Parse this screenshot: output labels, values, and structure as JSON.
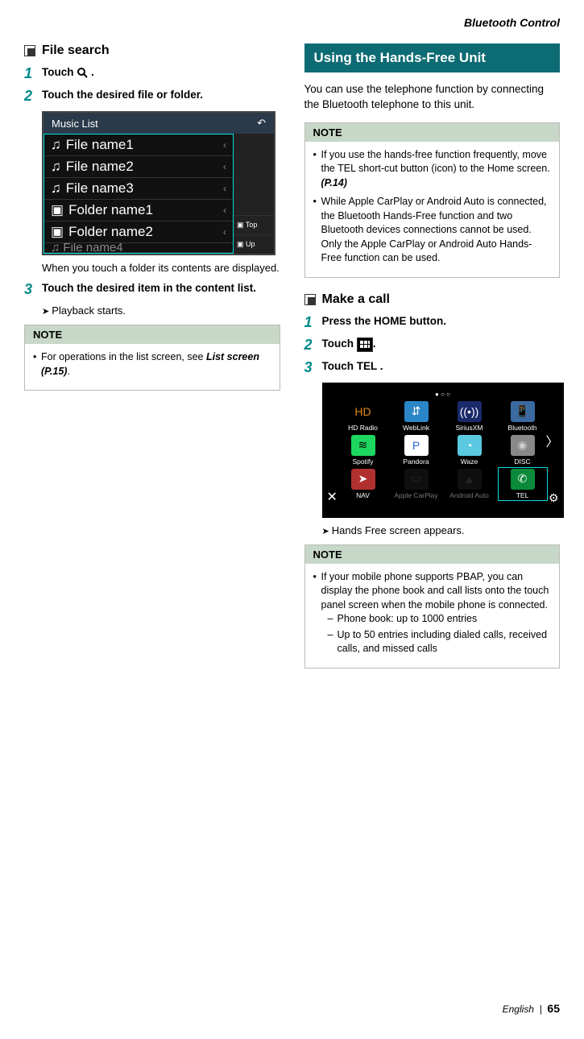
{
  "header": {
    "section": "Bluetooth Control"
  },
  "left": {
    "heading": "File search",
    "steps": {
      "s1_pre": "Touch ",
      "s1_post": " .",
      "s2": "Touch the desired file or folder.",
      "s2_caption": "When you touch a folder its contents are displayed.",
      "s3": "Touch the desired item in the content list.",
      "s3_result": "Playback starts."
    },
    "music": {
      "title": "Music List",
      "rows": [
        {
          "icon": "♫",
          "label": "File name1"
        },
        {
          "icon": "♫",
          "label": "File name2"
        },
        {
          "icon": "♫",
          "label": "File name3"
        },
        {
          "icon": "▣",
          "label": "Folder name1"
        },
        {
          "icon": "▣",
          "label": "Folder name2"
        }
      ],
      "row_cut": "File name4",
      "side": {
        "top": "▣ Top",
        "up": "▣ Up"
      }
    },
    "note": {
      "title": "NOTE",
      "item_pre": "For operations in the list screen, see ",
      "item_bold": "List screen (P.15)",
      "item_post": "."
    }
  },
  "right": {
    "section": "Using the Hands-Free Unit",
    "intro": "You can use the telephone function by connecting the Bluetooth telephone to this unit.",
    "note1": {
      "title": "NOTE",
      "i1_pre": "If you use the hands-free function frequently, move the TEL short-cut button (icon) to the Home screen. ",
      "i1_bold": "(P.14)",
      "i2": "While Apple CarPlay or Android Auto is connected, the Bluetooth Hands-Free function and two Bluetooth devices connections cannot be used. Only the Apple CarPlay or Android Auto Hands-Free function can be used."
    },
    "heading2": "Make a call",
    "steps": {
      "s1_pre": "Press the ",
      "s1_btn": "HOME",
      "s1_post": " button.",
      "s2_pre": "Touch ",
      "s2_post": ".",
      "s3_pre": "Touch ",
      "s3_btn": "TEL",
      "s3_post": " .",
      "s3_result": "Hands Free screen appears."
    },
    "home": {
      "apps": [
        {
          "label": "HD Radio",
          "bg": "#000",
          "glyph": "HD",
          "gcolor": "#e08a1a"
        },
        {
          "label": "WebLink",
          "bg": "#2b86c7",
          "glyph": "⇵",
          "gcolor": "#fff"
        },
        {
          "label": "SiriusXM",
          "bg": "#1a2a6a",
          "glyph": "((•))",
          "gcolor": "#fff"
        },
        {
          "label": "Bluetooth",
          "bg": "#3a6aa0",
          "glyph": "📱",
          "gcolor": "#fff"
        },
        {
          "label": "Spotify",
          "bg": "#1ed760",
          "glyph": "≋",
          "gcolor": "#000"
        },
        {
          "label": "Pandora",
          "bg": "#fff",
          "glyph": "P",
          "gcolor": "#2a6ad6"
        },
        {
          "label": "Waze",
          "bg": "#5ac8e0",
          "glyph": "◔",
          "gcolor": "#fff"
        },
        {
          "label": "DISC",
          "bg": "#888",
          "glyph": "◉",
          "gcolor": "#ccc"
        },
        {
          "label": "NAV",
          "bg": "#b03030",
          "glyph": "➤",
          "gcolor": "#fff"
        },
        {
          "label": "Apple CarPlay",
          "bg": "#222",
          "glyph": "▭",
          "gcolor": "#555",
          "dim": true
        },
        {
          "label": "Android Auto",
          "bg": "#222",
          "glyph": "▲",
          "gcolor": "#555",
          "dim": true
        },
        {
          "label": "TEL",
          "bg": "#0a8a3a",
          "glyph": "✆",
          "gcolor": "#fff",
          "highlight": true
        }
      ]
    },
    "note2": {
      "title": "NOTE",
      "i1": "If your mobile phone supports PBAP, you can display the phone book and call lists onto the touch panel screen when the mobile phone is connected.",
      "sub1": "Phone book: up to 1000 entries",
      "sub2": "Up to 50 entries including dialed calls, received calls, and missed calls"
    }
  },
  "footer": {
    "lang": "English",
    "page": "65"
  }
}
